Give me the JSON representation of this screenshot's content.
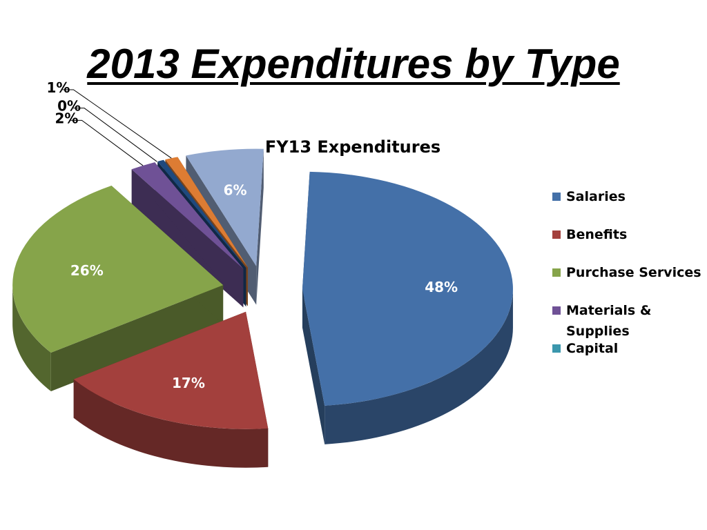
{
  "slide": {
    "title": "2013 Expenditures by Type"
  },
  "chart_data": {
    "type": "pie",
    "title": "FY13 Expenditures",
    "categories": [
      "Salaries",
      "Benefits",
      "Purchase Services",
      "Materials & Supplies",
      "Capital",
      "",
      "",
      ""
    ],
    "values": [
      48,
      17,
      26,
      2,
      0,
      0.5,
      1,
      6
    ],
    "labels": [
      "48%",
      "17%",
      "26%",
      "2%",
      "0%",
      "",
      "1%",
      "6%"
    ],
    "colors": [
      "#4470a8",
      "#a3403d",
      "#86a44a",
      "#6f5196",
      "#3b97ad",
      "#1f497d",
      "#dd7c33",
      "#93a9cf"
    ],
    "legend_position": "right",
    "exploded": true,
    "three_d": true
  }
}
